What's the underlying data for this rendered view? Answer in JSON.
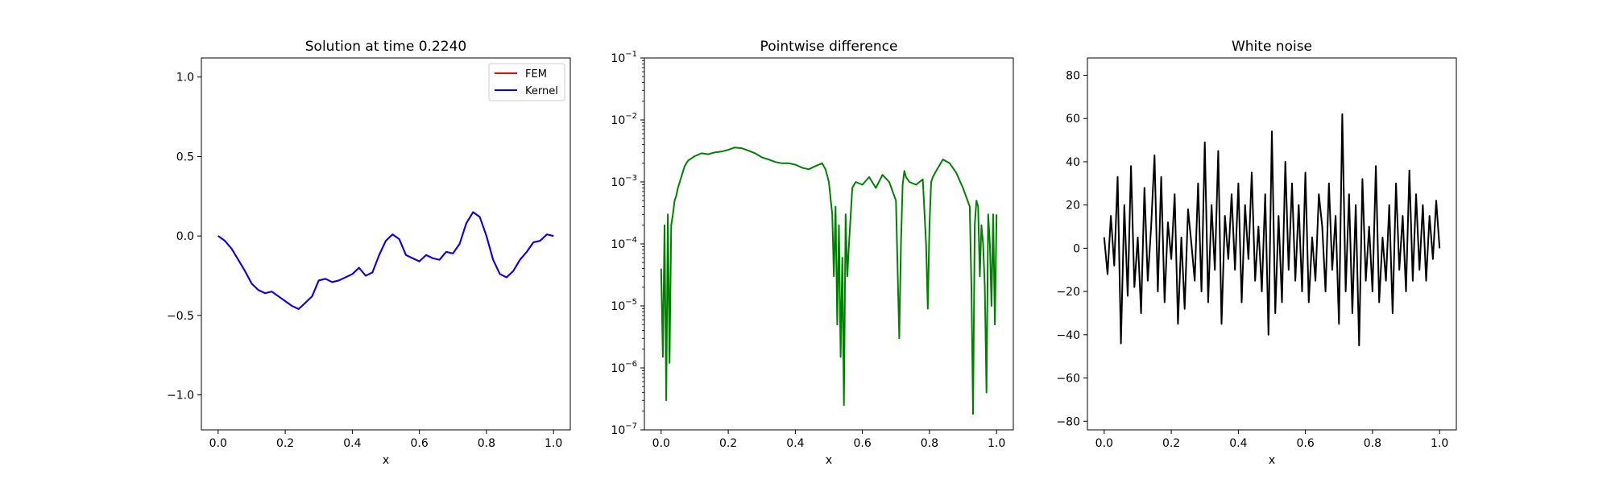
{
  "chart_data": [
    {
      "type": "line",
      "title": "Solution at time 0.2240",
      "xlabel": "x",
      "ylabel": "",
      "xlim": [
        -0.05,
        1.05
      ],
      "ylim": [
        -1.22,
        1.12
      ],
      "xticks": [
        0.0,
        0.2,
        0.4,
        0.6,
        0.8,
        1.0
      ],
      "xtick_labels": [
        "0.0",
        "0.2",
        "0.4",
        "0.6",
        "0.8",
        "1.0"
      ],
      "yticks": [
        -1.0,
        -0.5,
        0.0,
        0.5,
        1.0
      ],
      "ytick_labels": [
        "−1.0",
        "−0.5",
        "0.0",
        "0.5",
        "1.0"
      ],
      "legend": "top-right",
      "x": [
        0.0,
        0.02,
        0.04,
        0.06,
        0.08,
        0.1,
        0.12,
        0.14,
        0.16,
        0.18,
        0.2,
        0.22,
        0.24,
        0.26,
        0.28,
        0.3,
        0.32,
        0.34,
        0.36,
        0.38,
        0.4,
        0.42,
        0.44,
        0.46,
        0.48,
        0.5,
        0.52,
        0.54,
        0.56,
        0.58,
        0.6,
        0.62,
        0.64,
        0.66,
        0.68,
        0.7,
        0.72,
        0.74,
        0.76,
        0.78,
        0.8,
        0.82,
        0.84,
        0.86,
        0.88,
        0.9,
        0.92,
        0.94,
        0.96,
        0.98,
        1.0
      ],
      "series": [
        {
          "name": "FEM",
          "color": "#ff0000",
          "values": [
            0.0,
            -0.03,
            -0.08,
            -0.15,
            -0.22,
            -0.3,
            -0.34,
            -0.36,
            -0.35,
            -0.38,
            -0.41,
            -0.44,
            -0.46,
            -0.42,
            -0.38,
            -0.28,
            -0.27,
            -0.29,
            -0.28,
            -0.26,
            -0.24,
            -0.2,
            -0.25,
            -0.23,
            -0.12,
            -0.03,
            0.01,
            -0.02,
            -0.12,
            -0.14,
            -0.16,
            -0.12,
            -0.14,
            -0.15,
            -0.1,
            -0.11,
            -0.05,
            0.08,
            0.15,
            0.12,
            0.0,
            -0.15,
            -0.24,
            -0.26,
            -0.22,
            -0.15,
            -0.1,
            -0.04,
            -0.03,
            0.01,
            0.0
          ]
        },
        {
          "name": "Kernel",
          "color": "#0000ff",
          "values": [
            0.0,
            -0.03,
            -0.08,
            -0.15,
            -0.22,
            -0.3,
            -0.34,
            -0.36,
            -0.35,
            -0.38,
            -0.41,
            -0.44,
            -0.46,
            -0.42,
            -0.38,
            -0.28,
            -0.27,
            -0.29,
            -0.28,
            -0.26,
            -0.24,
            -0.2,
            -0.25,
            -0.23,
            -0.12,
            -0.03,
            0.01,
            -0.02,
            -0.12,
            -0.14,
            -0.16,
            -0.12,
            -0.14,
            -0.15,
            -0.1,
            -0.11,
            -0.05,
            0.08,
            0.15,
            0.12,
            0.0,
            -0.15,
            -0.24,
            -0.26,
            -0.22,
            -0.15,
            -0.1,
            -0.04,
            -0.03,
            0.01,
            0.0
          ]
        }
      ]
    },
    {
      "type": "line",
      "title": "Pointwise difference",
      "xlabel": "x",
      "ylabel": "",
      "yscale": "log",
      "xlim": [
        -0.05,
        1.05
      ],
      "ylim": [
        1e-07,
        0.1
      ],
      "xticks": [
        0.0,
        0.2,
        0.4,
        0.6,
        0.8,
        1.0
      ],
      "xtick_labels": [
        "0.0",
        "0.2",
        "0.4",
        "0.6",
        "0.8",
        "1.0"
      ],
      "yticks": [
        1e-07,
        1e-06,
        1e-05,
        0.0001,
        0.001,
        0.01,
        0.1
      ],
      "ytick_labels": [
        [
          "10",
          "−7"
        ],
        [
          "10",
          "−6"
        ],
        [
          "10",
          "−5"
        ],
        [
          "10",
          "−4"
        ],
        [
          "10",
          "−3"
        ],
        [
          "10",
          "−2"
        ],
        [
          "10",
          "−1"
        ]
      ],
      "series": [
        {
          "color": "#008000",
          "x": [
            0.0,
            0.005,
            0.01,
            0.015,
            0.02,
            0.025,
            0.03,
            0.035,
            0.04,
            0.045,
            0.05,
            0.06,
            0.07,
            0.08,
            0.1,
            0.12,
            0.14,
            0.16,
            0.18,
            0.2,
            0.22,
            0.24,
            0.26,
            0.28,
            0.3,
            0.32,
            0.34,
            0.36,
            0.38,
            0.4,
            0.42,
            0.44,
            0.46,
            0.48,
            0.49,
            0.5,
            0.51,
            0.515,
            0.52,
            0.525,
            0.53,
            0.535,
            0.54,
            0.545,
            0.55,
            0.555,
            0.56,
            0.57,
            0.58,
            0.6,
            0.62,
            0.64,
            0.66,
            0.68,
            0.7,
            0.71,
            0.715,
            0.72,
            0.725,
            0.73,
            0.74,
            0.76,
            0.78,
            0.79,
            0.795,
            0.8,
            0.805,
            0.81,
            0.82,
            0.84,
            0.86,
            0.88,
            0.9,
            0.92,
            0.925,
            0.93,
            0.935,
            0.94,
            0.945,
            0.95,
            0.955,
            0.96,
            0.965,
            0.97,
            0.975,
            0.98,
            0.985,
            0.99,
            0.995,
            1.0
          ],
          "values": [
            4e-05,
            1.5e-06,
            0.0002,
            3e-07,
            0.0003,
            1.2e-06,
            0.0002,
            0.0003,
            0.0005,
            0.0006,
            0.0008,
            0.0012,
            0.0018,
            0.0022,
            0.0026,
            0.0029,
            0.0028,
            0.003,
            0.0031,
            0.0033,
            0.0036,
            0.0035,
            0.0032,
            0.0029,
            0.0025,
            0.0023,
            0.0021,
            0.002,
            0.002,
            0.0019,
            0.0017,
            0.0016,
            0.0018,
            0.002,
            0.0016,
            0.001,
            0.0003,
            3e-05,
            0.0004,
            5e-06,
            0.0002,
            1.5e-06,
            6e-05,
            2.5e-07,
            0.0003,
            3e-05,
            0.0001,
            0.0008,
            0.001,
            0.0009,
            0.0012,
            0.0008,
            0.0013,
            0.001,
            0.0005,
            3e-06,
            0.0001,
            0.0009,
            0.0015,
            0.0012,
            0.001,
            0.0009,
            0.0011,
            0.0001,
            9e-06,
            0.0002,
            0.001,
            0.0012,
            0.0015,
            0.0023,
            0.002,
            0.0014,
            0.0008,
            0.0004,
            2e-05,
            1.8e-07,
            0.0002,
            0.0005,
            0.0004,
            3e-05,
            0.0002,
            0.0001,
            2e-05,
            4e-07,
            0.0003,
            0.0001,
            1e-05,
            0.0003,
            5e-06,
            0.0003
          ]
        }
      ]
    },
    {
      "type": "line",
      "title": "White noise",
      "xlabel": "x",
      "ylabel": "",
      "xlim": [
        -0.05,
        1.05
      ],
      "ylim": [
        -84,
        88
      ],
      "xticks": [
        0.0,
        0.2,
        0.4,
        0.6,
        0.8,
        1.0
      ],
      "xtick_labels": [
        "0.0",
        "0.2",
        "0.4",
        "0.6",
        "0.8",
        "1.0"
      ],
      "yticks": [
        -80,
        -60,
        -40,
        -20,
        0,
        20,
        40,
        60,
        80
      ],
      "ytick_labels": [
        "−80",
        "−60",
        "−40",
        "−20",
        "0",
        "20",
        "40",
        "60",
        "80"
      ],
      "series": [
        {
          "color": "#000000",
          "x": [
            0.0,
            0.01,
            0.02,
            0.03,
            0.04,
            0.05,
            0.06,
            0.07,
            0.08,
            0.09,
            0.1,
            0.11,
            0.12,
            0.13,
            0.14,
            0.15,
            0.16,
            0.17,
            0.18,
            0.19,
            0.2,
            0.21,
            0.22,
            0.23,
            0.24,
            0.25,
            0.26,
            0.27,
            0.28,
            0.29,
            0.3,
            0.31,
            0.32,
            0.33,
            0.34,
            0.35,
            0.36,
            0.37,
            0.38,
            0.39,
            0.4,
            0.41,
            0.42,
            0.43,
            0.44,
            0.45,
            0.46,
            0.47,
            0.48,
            0.49,
            0.5,
            0.51,
            0.52,
            0.53,
            0.54,
            0.55,
            0.56,
            0.57,
            0.58,
            0.59,
            0.6,
            0.61,
            0.62,
            0.63,
            0.64,
            0.65,
            0.66,
            0.67,
            0.68,
            0.69,
            0.7,
            0.71,
            0.72,
            0.73,
            0.74,
            0.75,
            0.76,
            0.77,
            0.78,
            0.79,
            0.8,
            0.81,
            0.82,
            0.83,
            0.84,
            0.85,
            0.86,
            0.87,
            0.88,
            0.89,
            0.9,
            0.91,
            0.92,
            0.93,
            0.94,
            0.95,
            0.96,
            0.97,
            0.98,
            0.99,
            1.0
          ],
          "values": [
            5,
            -12,
            15,
            -8,
            33,
            -44,
            20,
            -22,
            38,
            -18,
            5,
            -30,
            28,
            -15,
            10,
            43,
            -20,
            33,
            -25,
            12,
            -5,
            25,
            -35,
            5,
            -28,
            18,
            2,
            -15,
            30,
            -20,
            49,
            -25,
            20,
            -10,
            45,
            -35,
            15,
            -5,
            25,
            -10,
            30,
            -25,
            20,
            -5,
            35,
            -15,
            10,
            -20,
            25,
            -40,
            54,
            -30,
            15,
            -25,
            40,
            -10,
            30,
            -15,
            20,
            -20,
            35,
            -25,
            5,
            -15,
            25,
            10,
            -20,
            30,
            -10,
            15,
            -35,
            62,
            -20,
            25,
            -30,
            20,
            -45,
            32,
            -15,
            10,
            -20,
            38,
            -25,
            5,
            -15,
            20,
            -30,
            30,
            -10,
            15,
            -20,
            36,
            -15,
            25,
            -10,
            20,
            -15,
            15,
            -5,
            22,
            0
          ]
        }
      ]
    }
  ]
}
